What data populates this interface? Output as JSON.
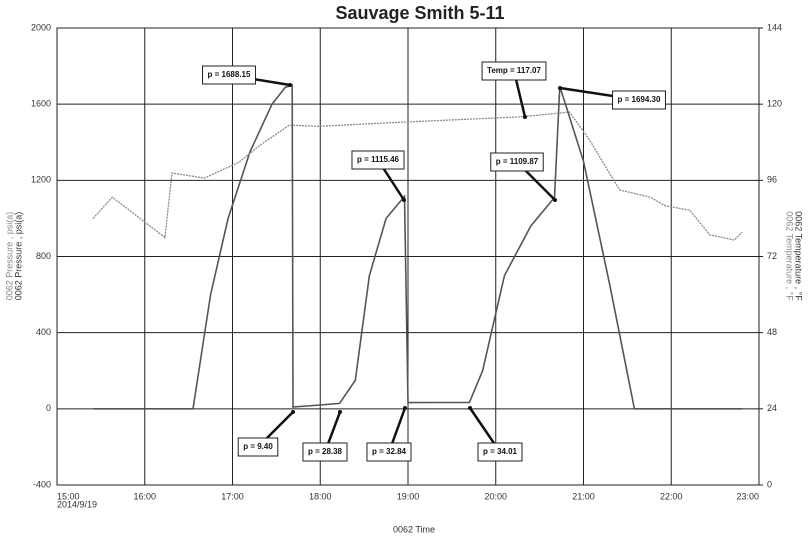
{
  "chart_data": {
    "type": "line",
    "title": "Sauvage Smith 5-11",
    "xlabel": "0062 Time",
    "x_sublabel": "2014/9/19",
    "ylabel": "0062 Pressure , psi(a)",
    "y2label": "0062 Temperature , °F",
    "xlim": [
      15,
      23
    ],
    "xticks": [
      {
        "value": 15,
        "label": "15:00"
      },
      {
        "value": 16,
        "label": "16:00"
      },
      {
        "value": 17,
        "label": "17:00"
      },
      {
        "value": 18,
        "label": "18:00"
      },
      {
        "value": 19,
        "label": "19:00"
      },
      {
        "value": 20,
        "label": "20:00"
      },
      {
        "value": 21,
        "label": "21:00"
      },
      {
        "value": 22,
        "label": "22:00"
      },
      {
        "value": 23,
        "label": "23:00"
      }
    ],
    "ylim": [
      -400,
      2000
    ],
    "yticks": [
      -400,
      0,
      400,
      800,
      1200,
      1600,
      2000
    ],
    "y2lim": [
      0,
      144
    ],
    "y2ticks": [
      0,
      24,
      48,
      72,
      96,
      120,
      144
    ],
    "grid": true,
    "series": [
      {
        "name": "0062 Pressure",
        "color": "#555555",
        "x": [
          15.41,
          16.55,
          16.75,
          16.95,
          17.2,
          17.45,
          17.6,
          17.68,
          17.69,
          18.0,
          18.22,
          18.4,
          18.56,
          18.75,
          18.96,
          19.0,
          19.3,
          19.7,
          19.85,
          20.1,
          20.4,
          20.67,
          20.73,
          21.0,
          21.3,
          21.58,
          22.0,
          22.81
        ],
        "values": [
          0,
          0,
          600,
          1000,
          1350,
          1600,
          1688.15,
          1700,
          9.4,
          20,
          28.38,
          150,
          700,
          1000,
          1115.46,
          32.84,
          33,
          34.01,
          200,
          700,
          960,
          1109.87,
          1694.3,
          1300,
          650,
          0,
          0,
          0
        ]
      },
      {
        "name": "0062 Temperature",
        "color": "#8a8a8a",
        "axis": "y2",
        "x": [
          15.41,
          15.63,
          16.23,
          16.31,
          16.68,
          17.08,
          17.31,
          17.65,
          17.99,
          18.68,
          19.48,
          20.27,
          20.5,
          20.84,
          21.07,
          21.41,
          21.76,
          21.93,
          22.21,
          22.44,
          22.72,
          22.81
        ],
        "values": [
          84,
          90.7,
          78,
          98.3,
          96.7,
          101.8,
          107,
          113.4,
          113,
          114,
          115,
          116,
          116.6,
          117.5,
          108.7,
          93,
          90.7,
          88,
          86.6,
          78.8,
          77.2,
          79.7
        ]
      }
    ],
    "annotations": [
      "p = 1688.15",
      "Temp = 117.07",
      "p = 1694.30",
      "p = 1115.46",
      "p = 1109.87",
      "p = 9.40",
      "p = 28.38",
      "p = 32.84",
      "p = 34.01"
    ]
  }
}
